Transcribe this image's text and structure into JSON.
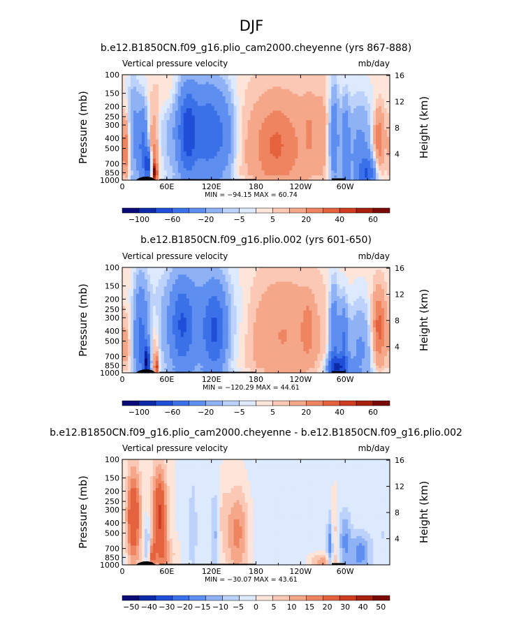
{
  "figure": {
    "title": "DJF"
  },
  "colors": {
    "blues": [
      "#0a0a78",
      "#0d2aa8",
      "#1f4fd8",
      "#3a70e8",
      "#5d8ef0",
      "#8fb2f5",
      "#bcd2fb",
      "#dde9fd"
    ],
    "reds": [
      "#fde5da",
      "#fac8b4",
      "#f5a789",
      "#ef8560",
      "#e4623d",
      "#cf3d20",
      "#a8200e",
      "#7a0a06"
    ],
    "terrain": "#000000"
  },
  "chart_data": [
    {
      "type": "heatmap",
      "title": "b.e12.B1850CN.f09_g16.plio_cam2000.cheyenne (yrs 867-888)",
      "field_label": "Vertical pressure velocity",
      "units": "mb/day",
      "ylabel": "Pressure (mb)",
      "y2label": "Height (km)",
      "x_ticks": [
        "0",
        "60E",
        "120E",
        "180",
        "120W",
        "60W"
      ],
      "x_tick_lon": [
        0,
        60,
        120,
        180,
        240,
        300
      ],
      "xlim": [
        0,
        360
      ],
      "y_ticks": [
        "100",
        "150",
        "200",
        "250",
        "300",
        "400",
        "500",
        "700",
        "850",
        "1000"
      ],
      "y_tick_p": [
        100,
        150,
        200,
        250,
        300,
        400,
        500,
        700,
        850,
        1000
      ],
      "ylim": [
        1000,
        100
      ],
      "y2_ticks": [
        "4",
        "8",
        "12",
        "16"
      ],
      "y2_tick_km": [
        4,
        8,
        12,
        16
      ],
      "stats_text": "MIN = −94.15   MAX =  60.74",
      "min": -94.15,
      "max": 60.74,
      "colorbar_labels": [
        "−100",
        "−60",
        "−20",
        "−5",
        "5",
        "20",
        "40",
        "60"
      ],
      "features": [
        {
          "lon": 5,
          "p": 500,
          "w": 4,
          "h": 6,
          "v": 30
        },
        {
          "lon": 15,
          "p": 350,
          "w": 6,
          "h": 10,
          "v": -25
        },
        {
          "lon": 28,
          "p": 500,
          "w": 5,
          "h": 8,
          "v": -45
        },
        {
          "lon": 35,
          "p": 720,
          "w": 3,
          "h": 3,
          "v": -70
        },
        {
          "lon": 42,
          "p": 560,
          "w": 5,
          "h": 8,
          "v": 25
        },
        {
          "lon": 44,
          "p": 850,
          "w": 2,
          "h": 2,
          "v": 55
        },
        {
          "lon": 60,
          "p": 150,
          "w": 14,
          "h": 4,
          "v": 8
        },
        {
          "lon": 95,
          "p": 350,
          "w": 28,
          "h": 10,
          "v": -30
        },
        {
          "lon": 88,
          "p": 350,
          "w": 8,
          "h": 8,
          "v": -50
        },
        {
          "lon": 118,
          "p": 350,
          "w": 14,
          "h": 9,
          "v": -35
        },
        {
          "lon": 140,
          "p": 400,
          "w": 10,
          "h": 9,
          "v": -20
        },
        {
          "lon": 215,
          "p": 500,
          "w": 40,
          "h": 11,
          "v": 18
        },
        {
          "lon": 205,
          "p": 450,
          "w": 16,
          "h": 7,
          "v": 12
        },
        {
          "lon": 252,
          "p": 320,
          "w": 5,
          "h": 6,
          "v": 8
        },
        {
          "lon": 270,
          "p": 280,
          "w": 10,
          "h": 10,
          "v": 5
        },
        {
          "lon": 285,
          "p": 400,
          "w": 5,
          "h": 10,
          "v": -40
        },
        {
          "lon": 300,
          "p": 500,
          "w": 4,
          "h": 9,
          "v": -35
        },
        {
          "lon": 320,
          "p": 550,
          "w": 14,
          "h": 10,
          "v": -28
        },
        {
          "lon": 345,
          "p": 420,
          "w": 6,
          "h": 6,
          "v": 30
        },
        {
          "lon": 330,
          "p": 850,
          "w": 8,
          "h": 3,
          "v": -45
        }
      ]
    },
    {
      "type": "heatmap",
      "title": "b.e12.B1850CN.f09_g16.plio.002 (yrs 601-650)",
      "field_label": "Vertical pressure velocity",
      "units": "mb/day",
      "ylabel": "Pressure (mb)",
      "y2label": "Height (km)",
      "x_ticks": [
        "0",
        "60E",
        "120E",
        "180",
        "120W",
        "60W"
      ],
      "x_tick_lon": [
        0,
        60,
        120,
        180,
        240,
        300
      ],
      "xlim": [
        0,
        360
      ],
      "y_ticks": [
        "100",
        "150",
        "200",
        "250",
        "300",
        "400",
        "500",
        "700",
        "850",
        "1000"
      ],
      "y_tick_p": [
        100,
        150,
        200,
        250,
        300,
        400,
        500,
        700,
        850,
        1000
      ],
      "ylim": [
        1000,
        100
      ],
      "y2_ticks": [
        "4",
        "8",
        "12",
        "16"
      ],
      "y2_tick_km": [
        4,
        8,
        12,
        16
      ],
      "stats_text": "MIN = −120.29   MAX =  44.61",
      "min": -120.29,
      "max": 44.61,
      "colorbar_labels": [
        "−100",
        "−60",
        "−20",
        "−5",
        "5",
        "20",
        "40",
        "60"
      ],
      "features": [
        {
          "lon": 5,
          "p": 550,
          "w": 5,
          "h": 6,
          "v": 12
        },
        {
          "lon": 25,
          "p": 500,
          "w": 7,
          "h": 11,
          "v": -45
        },
        {
          "lon": 33,
          "p": 800,
          "w": 3,
          "h": 3,
          "v": -85
        },
        {
          "lon": 44,
          "p": 600,
          "w": 4,
          "h": 6,
          "v": 15
        },
        {
          "lon": 46,
          "p": 880,
          "w": 2,
          "h": 2,
          "v": 40
        },
        {
          "lon": 100,
          "p": 350,
          "w": 38,
          "h": 11,
          "v": -30
        },
        {
          "lon": 80,
          "p": 350,
          "w": 10,
          "h": 8,
          "v": -40
        },
        {
          "lon": 125,
          "p": 400,
          "w": 10,
          "h": 8,
          "v": -45
        },
        {
          "lon": 215,
          "p": 450,
          "w": 40,
          "h": 11,
          "v": 18
        },
        {
          "lon": 250,
          "p": 380,
          "w": 5,
          "h": 5,
          "v": 15
        },
        {
          "lon": 285,
          "p": 500,
          "w": 5,
          "h": 10,
          "v": -45
        },
        {
          "lon": 298,
          "p": 550,
          "w": 4,
          "h": 8,
          "v": -40
        },
        {
          "lon": 320,
          "p": 600,
          "w": 14,
          "h": 9,
          "v": -25
        },
        {
          "lon": 345,
          "p": 380,
          "w": 7,
          "h": 7,
          "v": 35
        },
        {
          "lon": 290,
          "p": 880,
          "w": 10,
          "h": 2,
          "v": -60
        }
      ]
    },
    {
      "type": "heatmap",
      "title": "b.e12.B1850CN.f09_g16.plio_cam2000.cheyenne - b.e12.B1850CN.f09_g16.plio.002",
      "field_label": "Vertical pressure velocity",
      "units": "mb/day",
      "ylabel": "Pressure (mb)",
      "y2label": "Height (km)",
      "x_ticks": [
        "0",
        "60E",
        "120E",
        "180",
        "120W",
        "60W"
      ],
      "x_tick_lon": [
        0,
        60,
        120,
        180,
        240,
        300
      ],
      "xlim": [
        0,
        360
      ],
      "y_ticks": [
        "100",
        "150",
        "200",
        "250",
        "300",
        "400",
        "500",
        "700",
        "850",
        "1000"
      ],
      "y_tick_p": [
        100,
        150,
        200,
        250,
        300,
        400,
        500,
        700,
        850,
        1000
      ],
      "ylim": [
        1000,
        100
      ],
      "y2_ticks": [
        "4",
        "8",
        "12",
        "16"
      ],
      "y2_tick_km": [
        4,
        8,
        12,
        16
      ],
      "stats_text": "MIN = −30.07   MAX =  43.61",
      "min": -30.07,
      "max": 43.61,
      "colorbar_labels": [
        "−50",
        "−40",
        "−30",
        "−20",
        "−15",
        "−10",
        "−5",
        "0",
        "5",
        "10",
        "15",
        "20",
        "30",
        "40",
        "50"
      ],
      "features": [
        {
          "lon": 15,
          "p": 350,
          "w": 7,
          "h": 9,
          "v": 30
        },
        {
          "lon": 50,
          "p": 350,
          "w": 7,
          "h": 9,
          "v": 32
        },
        {
          "lon": 34,
          "p": 600,
          "w": 3,
          "h": 5,
          "v": -12
        },
        {
          "lon": 40,
          "p": 850,
          "w": 3,
          "h": 3,
          "v": 18
        },
        {
          "lon": 60,
          "p": 800,
          "w": 8,
          "h": 3,
          "v": 10
        },
        {
          "lon": 95,
          "p": 450,
          "w": 4,
          "h": 10,
          "v": -8
        },
        {
          "lon": 125,
          "p": 500,
          "w": 4,
          "h": 8,
          "v": -10
        },
        {
          "lon": 135,
          "p": 350,
          "w": 5,
          "h": 7,
          "v": 6
        },
        {
          "lon": 155,
          "p": 500,
          "w": 12,
          "h": 9,
          "v": 20
        },
        {
          "lon": 190,
          "p": 500,
          "w": 55,
          "h": 16,
          "v": -4
        },
        {
          "lon": 280,
          "p": 700,
          "w": 3,
          "h": 6,
          "v": -20
        },
        {
          "lon": 285,
          "p": 500,
          "w": 3,
          "h": 6,
          "v": 10
        },
        {
          "lon": 300,
          "p": 600,
          "w": 6,
          "h": 6,
          "v": -15
        },
        {
          "lon": 320,
          "p": 780,
          "w": 9,
          "h": 4,
          "v": -18
        },
        {
          "lon": 270,
          "p": 930,
          "w": 12,
          "h": 1.5,
          "v": 14
        },
        {
          "lon": 350,
          "p": 500,
          "w": 12,
          "h": 12,
          "v": -5
        }
      ]
    }
  ]
}
